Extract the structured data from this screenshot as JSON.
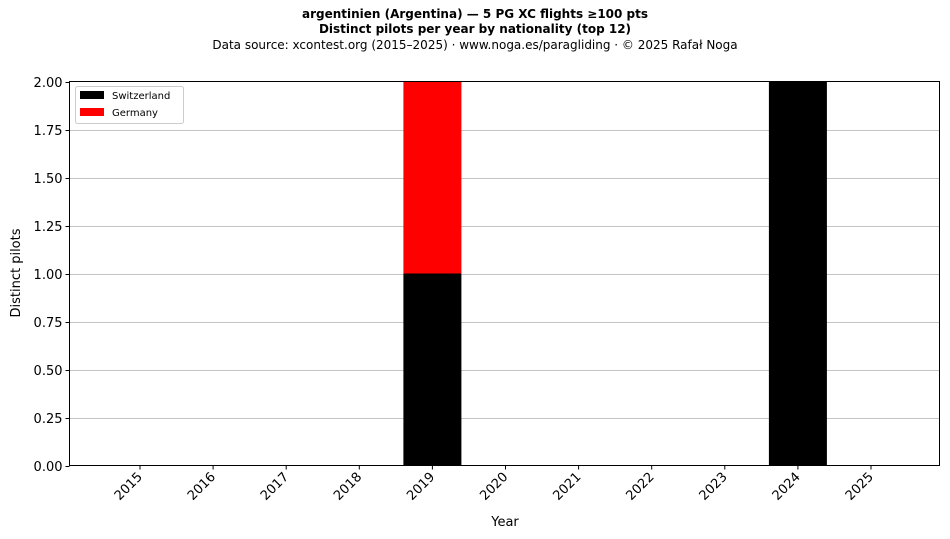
{
  "chart_data": {
    "type": "bar",
    "stacked": true,
    "title_line1": "argentinien (Argentina)  —  5 PG XC flights ≥100 pts",
    "title_line2": "Distinct pilots per year by nationality (top 12)",
    "subtitle": "Data source: xcontest.org (2015–2025)  ·  www.noga.es/paragliding  ·  © 2025 Rafał Noga",
    "xlabel": "Year",
    "ylabel": "Distinct pilots",
    "categories": [
      "2015",
      "2016",
      "2017",
      "2018",
      "2019",
      "2020",
      "2021",
      "2022",
      "2023",
      "2024",
      "2025"
    ],
    "series": [
      {
        "name": "Switzerland",
        "color": "#000000",
        "values": [
          0,
          0,
          0,
          0,
          1,
          0,
          0,
          0,
          0,
          2,
          0
        ]
      },
      {
        "name": "Germany",
        "color": "#ff0000",
        "values": [
          0,
          0,
          0,
          0,
          1,
          0,
          0,
          0,
          0,
          0,
          0
        ]
      }
    ],
    "ylim": [
      0,
      2
    ],
    "yticks": [
      "0.00",
      "0.25",
      "0.50",
      "0.75",
      "1.00",
      "1.25",
      "1.50",
      "1.75",
      "2.00"
    ],
    "grid": "y",
    "legend": "top-left"
  }
}
